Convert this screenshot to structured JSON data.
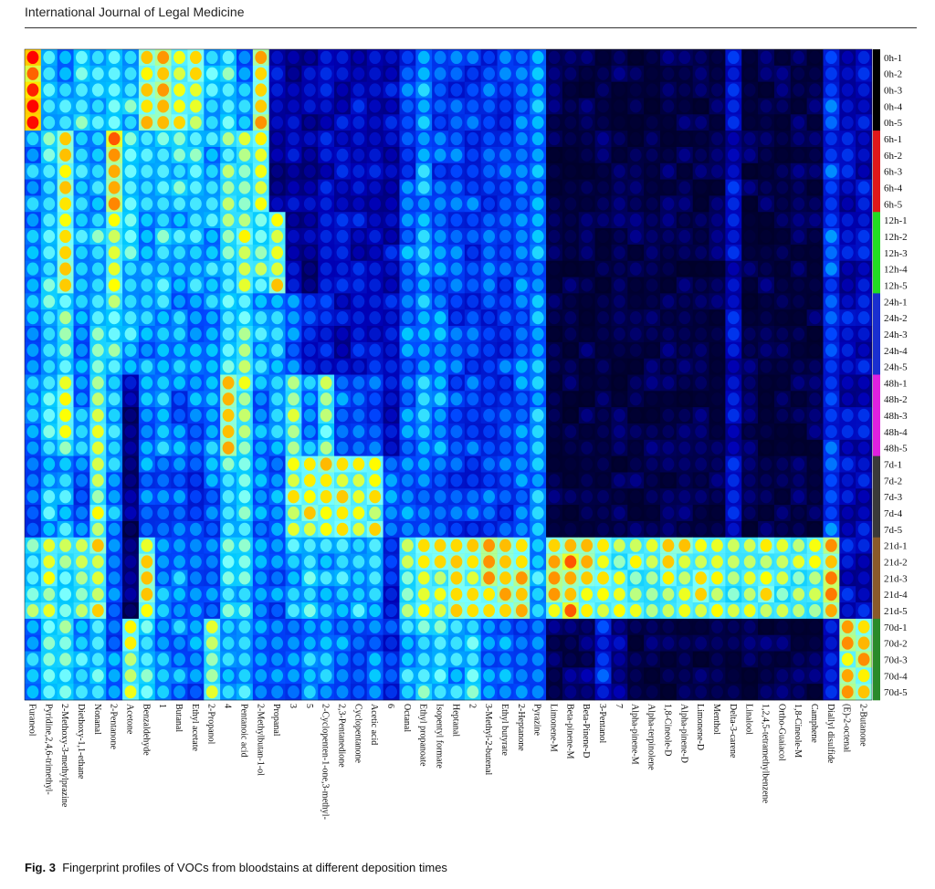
{
  "header": {
    "journal": "International Journal of Legal Medicine"
  },
  "caption": {
    "label": "Fig. 3",
    "text": "Fingerprint profiles of VOCs from bloodstains at different deposition times"
  },
  "chart_data": {
    "type": "heatmap",
    "title": "",
    "colormap": [
      "#000010",
      "#00003c",
      "#0000b4",
      "#0046ff",
      "#00c8ff",
      "#78ffff",
      "#ffff00",
      "#ff7800",
      "#ff0000"
    ],
    "columns": [
      "Furaneol",
      "Pyridine,2,4,6-trimethyl-",
      "2-Methoxy-3-methylprazine",
      "Diethoxy-1,1-ethane",
      "Nonanal",
      "2-Pentanone",
      "Acetone",
      "Benzaldehyde",
      "1",
      "Butanal",
      "Ethyl acetate",
      "2-Propanol",
      "4",
      "Pentanoic acid",
      "2-Methylbutan-1-ol",
      "Propanal",
      "3",
      "5",
      "2-Cyclopenten-1-one,3-methyl-",
      "2,3-Pentanedione",
      "Cyclopentanone",
      "Acetic acid",
      "6",
      "Octanal",
      "Ethyl propanoate",
      "Isopentyl formate",
      "Heptanal",
      "2",
      "3-Methyl-2-butenal",
      "Ethyl butyrate",
      "2-Heptanone",
      "Pyrazine",
      "Limonene-M",
      "Beta-pinene-M",
      "Beta-Pinene-D",
      "3-Pentanol",
      "7",
      "Alpha-pinene-M",
      "Alpha-terpinolene",
      "1,8-Cineole-D",
      "Alpha-pinene-D",
      "Limonene-D",
      "Menthol",
      "Delta-3-carene",
      "Linalool",
      "1,2,4,5-tetramethylbenzene",
      "Ortho-Guaiacol",
      "1,8-Cineole-M",
      "Camphene",
      "Diallyl disulfide",
      "(E)-2-octenal",
      "2-Butanone"
    ],
    "groups": [
      {
        "name": "0h",
        "color": "#000000",
        "rows": [
          "0h-1",
          "0h-2",
          "0h-3",
          "0h-4",
          "0h-5"
        ]
      },
      {
        "name": "6h",
        "color": "#e0181a",
        "rows": [
          "6h-1",
          "6h-2",
          "6h-3",
          "6h-4",
          "6h-5"
        ]
      },
      {
        "name": "12h",
        "color": "#22dd22",
        "rows": [
          "12h-1",
          "12h-2",
          "12h-3",
          "12h-4",
          "12h-5"
        ]
      },
      {
        "name": "24h",
        "color": "#1a2fd0",
        "rows": [
          "24h-1",
          "24h-2",
          "24h-3",
          "24h-4",
          "24h-5"
        ]
      },
      {
        "name": "48h",
        "color": "#e020e0",
        "rows": [
          "48h-1",
          "48h-2",
          "48h-3",
          "48h-4",
          "48h-5"
        ]
      },
      {
        "name": "7d",
        "color": "#3a3a3a",
        "rows": [
          "7d-1",
          "7d-2",
          "7d-3",
          "7d-4",
          "7d-5"
        ]
      },
      {
        "name": "21d",
        "color": "#8a5a2a",
        "rows": [
          "21d-1",
          "21d-2",
          "21d-3",
          "21d-4",
          "21d-5"
        ]
      },
      {
        "name": "70d",
        "color": "#2a8a2a",
        "rows": [
          "70d-1",
          "70d-2",
          "70d-3",
          "70d-4",
          "70d-5"
        ]
      }
    ],
    "intensity_by_group": [
      [
        0.95,
        0.55,
        0.55,
        0.6,
        0.55,
        0.6,
        0.6,
        0.8,
        0.8,
        0.75,
        0.75,
        0.6,
        0.6,
        0.5,
        0.8,
        0.3,
        0.25,
        0.25,
        0.3,
        0.3,
        0.3,
        0.3,
        0.3,
        0.4,
        0.5,
        0.4,
        0.4,
        0.4,
        0.4,
        0.4,
        0.45,
        0.5,
        0.15,
        0.15,
        0.15,
        0.15,
        0.15,
        0.15,
        0.15,
        0.15,
        0.15,
        0.15,
        0.15,
        0.3,
        0.15,
        0.15,
        0.15,
        0.15,
        0.15,
        0.4,
        0.3,
        0.3
      ],
      [
        0.5,
        0.6,
        0.8,
        0.55,
        0.55,
        0.85,
        0.6,
        0.55,
        0.6,
        0.6,
        0.6,
        0.55,
        0.65,
        0.7,
        0.75,
        0.25,
        0.25,
        0.25,
        0.3,
        0.3,
        0.3,
        0.3,
        0.3,
        0.4,
        0.5,
        0.4,
        0.4,
        0.4,
        0.4,
        0.4,
        0.45,
        0.5,
        0.15,
        0.15,
        0.15,
        0.15,
        0.15,
        0.15,
        0.15,
        0.15,
        0.15,
        0.15,
        0.15,
        0.3,
        0.15,
        0.15,
        0.15,
        0.15,
        0.15,
        0.4,
        0.3,
        0.3
      ],
      [
        0.5,
        0.6,
        0.75,
        0.55,
        0.6,
        0.75,
        0.6,
        0.55,
        0.6,
        0.55,
        0.55,
        0.55,
        0.65,
        0.7,
        0.65,
        0.75,
        0.25,
        0.25,
        0.3,
        0.3,
        0.3,
        0.3,
        0.3,
        0.45,
        0.5,
        0.45,
        0.4,
        0.4,
        0.4,
        0.4,
        0.45,
        0.5,
        0.15,
        0.15,
        0.15,
        0.15,
        0.15,
        0.15,
        0.15,
        0.15,
        0.15,
        0.15,
        0.15,
        0.3,
        0.15,
        0.15,
        0.15,
        0.15,
        0.15,
        0.4,
        0.3,
        0.3
      ],
      [
        0.5,
        0.6,
        0.65,
        0.5,
        0.6,
        0.65,
        0.55,
        0.5,
        0.55,
        0.5,
        0.5,
        0.5,
        0.6,
        0.65,
        0.55,
        0.55,
        0.45,
        0.35,
        0.35,
        0.3,
        0.3,
        0.3,
        0.3,
        0.45,
        0.5,
        0.45,
        0.4,
        0.4,
        0.4,
        0.4,
        0.45,
        0.5,
        0.15,
        0.15,
        0.15,
        0.15,
        0.15,
        0.15,
        0.15,
        0.15,
        0.15,
        0.15,
        0.15,
        0.3,
        0.15,
        0.15,
        0.15,
        0.15,
        0.15,
        0.4,
        0.3,
        0.3
      ],
      [
        0.5,
        0.6,
        0.7,
        0.5,
        0.7,
        0.55,
        0.25,
        0.5,
        0.5,
        0.45,
        0.45,
        0.5,
        0.8,
        0.7,
        0.5,
        0.5,
        0.7,
        0.5,
        0.65,
        0.45,
        0.4,
        0.4,
        0.3,
        0.45,
        0.5,
        0.5,
        0.4,
        0.4,
        0.4,
        0.4,
        0.45,
        0.5,
        0.15,
        0.15,
        0.15,
        0.15,
        0.15,
        0.15,
        0.15,
        0.15,
        0.15,
        0.15,
        0.15,
        0.3,
        0.15,
        0.15,
        0.15,
        0.15,
        0.15,
        0.4,
        0.3,
        0.3
      ],
      [
        0.45,
        0.55,
        0.55,
        0.45,
        0.7,
        0.5,
        0.2,
        0.45,
        0.45,
        0.45,
        0.4,
        0.45,
        0.6,
        0.6,
        0.45,
        0.45,
        0.75,
        0.75,
        0.8,
        0.75,
        0.75,
        0.75,
        0.45,
        0.45,
        0.45,
        0.45,
        0.4,
        0.4,
        0.4,
        0.4,
        0.45,
        0.5,
        0.15,
        0.15,
        0.15,
        0.15,
        0.15,
        0.15,
        0.15,
        0.15,
        0.15,
        0.15,
        0.15,
        0.3,
        0.15,
        0.15,
        0.15,
        0.15,
        0.15,
        0.4,
        0.3,
        0.3
      ],
      [
        0.65,
        0.7,
        0.65,
        0.65,
        0.75,
        0.45,
        0.2,
        0.75,
        0.5,
        0.5,
        0.45,
        0.45,
        0.6,
        0.6,
        0.45,
        0.45,
        0.55,
        0.6,
        0.55,
        0.55,
        0.55,
        0.55,
        0.35,
        0.7,
        0.75,
        0.75,
        0.8,
        0.75,
        0.8,
        0.8,
        0.8,
        0.55,
        0.8,
        0.85,
        0.8,
        0.75,
        0.7,
        0.7,
        0.7,
        0.75,
        0.75,
        0.75,
        0.7,
        0.7,
        0.75,
        0.75,
        0.7,
        0.7,
        0.7,
        0.85,
        0.3,
        0.3
      ],
      [
        0.5,
        0.6,
        0.65,
        0.55,
        0.6,
        0.45,
        0.75,
        0.6,
        0.5,
        0.5,
        0.45,
        0.7,
        0.55,
        0.55,
        0.45,
        0.45,
        0.45,
        0.5,
        0.5,
        0.45,
        0.45,
        0.45,
        0.35,
        0.55,
        0.6,
        0.6,
        0.55,
        0.6,
        0.45,
        0.45,
        0.45,
        0.45,
        0.2,
        0.2,
        0.2,
        0.35,
        0.25,
        0.15,
        0.15,
        0.15,
        0.15,
        0.15,
        0.15,
        0.15,
        0.15,
        0.15,
        0.15,
        0.15,
        0.15,
        0.35,
        0.8,
        0.8
      ]
    ]
  }
}
